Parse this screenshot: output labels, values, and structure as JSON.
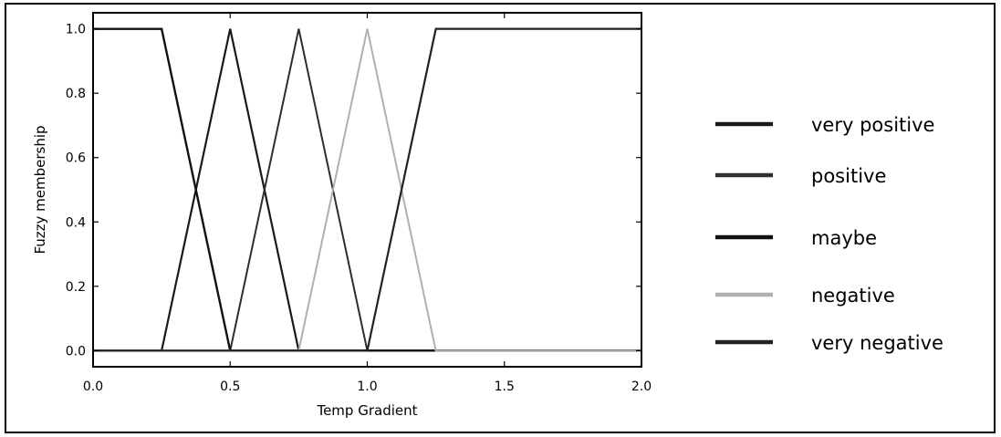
{
  "chart_data": {
    "type": "line",
    "xlabel": "Temp Gradient",
    "ylabel": "Fuzzy membership",
    "xlim": [
      0.0,
      2.0
    ],
    "ylim": [
      -0.05,
      1.05
    ],
    "xticks": [
      "0.0",
      "0.5",
      "1.0",
      "1.5",
      "2.0"
    ],
    "yticks": [
      "0.0",
      "0.2",
      "0.4",
      "0.6",
      "0.8",
      "1.0"
    ],
    "legend_position": "right",
    "grid": false,
    "series": [
      {
        "name": "very positive",
        "color": "#1a1a1a",
        "width": 2.2,
        "points": [
          [
            0.0,
            0.0
          ],
          [
            0.25,
            0.0
          ],
          [
            0.5,
            1.0
          ],
          [
            0.75,
            0.0
          ],
          [
            2.0,
            0.0
          ]
        ]
      },
      {
        "name": "positive",
        "color": "#2e2e2e",
        "width": 2.0,
        "points": [
          [
            0.0,
            0.0
          ],
          [
            0.5,
            0.0
          ],
          [
            0.75,
            1.0
          ],
          [
            1.0,
            0.0
          ],
          [
            2.0,
            0.0
          ]
        ]
      },
      {
        "name": "maybe",
        "color": "#111111",
        "width": 2.4,
        "points": [
          [
            0.0,
            1.0
          ],
          [
            0.25,
            1.0
          ],
          [
            0.5,
            0.0
          ],
          [
            2.0,
            0.0
          ]
        ]
      },
      {
        "name": "negative",
        "color": "#b0b0b0",
        "width": 2.0,
        "points": [
          [
            0.0,
            0.0
          ],
          [
            0.75,
            0.0
          ],
          [
            1.0,
            1.0
          ],
          [
            1.25,
            0.0
          ],
          [
            2.0,
            0.0
          ]
        ]
      },
      {
        "name": "very negative",
        "color": "#222222",
        "width": 2.2,
        "points": [
          [
            0.0,
            0.0
          ],
          [
            1.0,
            0.0
          ],
          [
            1.25,
            1.0
          ],
          [
            2.0,
            1.0
          ]
        ]
      }
    ]
  }
}
